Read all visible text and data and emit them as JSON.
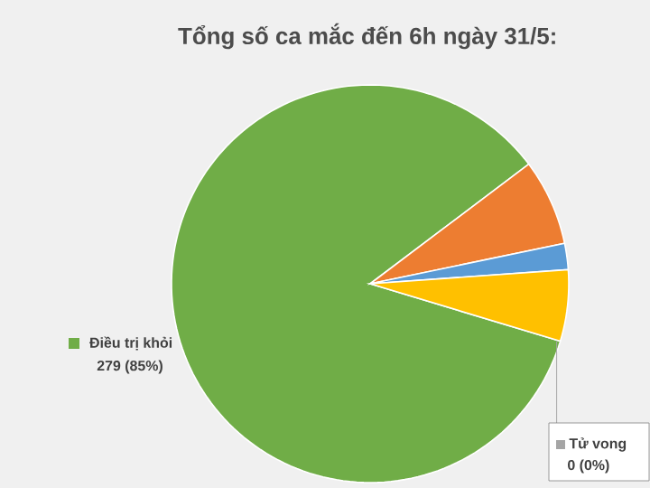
{
  "chart_data": {
    "type": "pie",
    "title": "Tổng số ca mắc đến 6h ngày 31/5:",
    "categories": [
      "Điều trị khỏi",
      null,
      null,
      null,
      "Tử vong"
    ],
    "values": [
      279,
      23,
      7,
      19,
      0
    ],
    "value_labels": [
      "279 (85%)",
      null,
      null,
      null,
      "0 (0%)"
    ],
    "colors": [
      "#70ad47",
      "#ed7d31",
      "#5b9bd5",
      "#ffc000",
      "#a5a5a5"
    ]
  }
}
